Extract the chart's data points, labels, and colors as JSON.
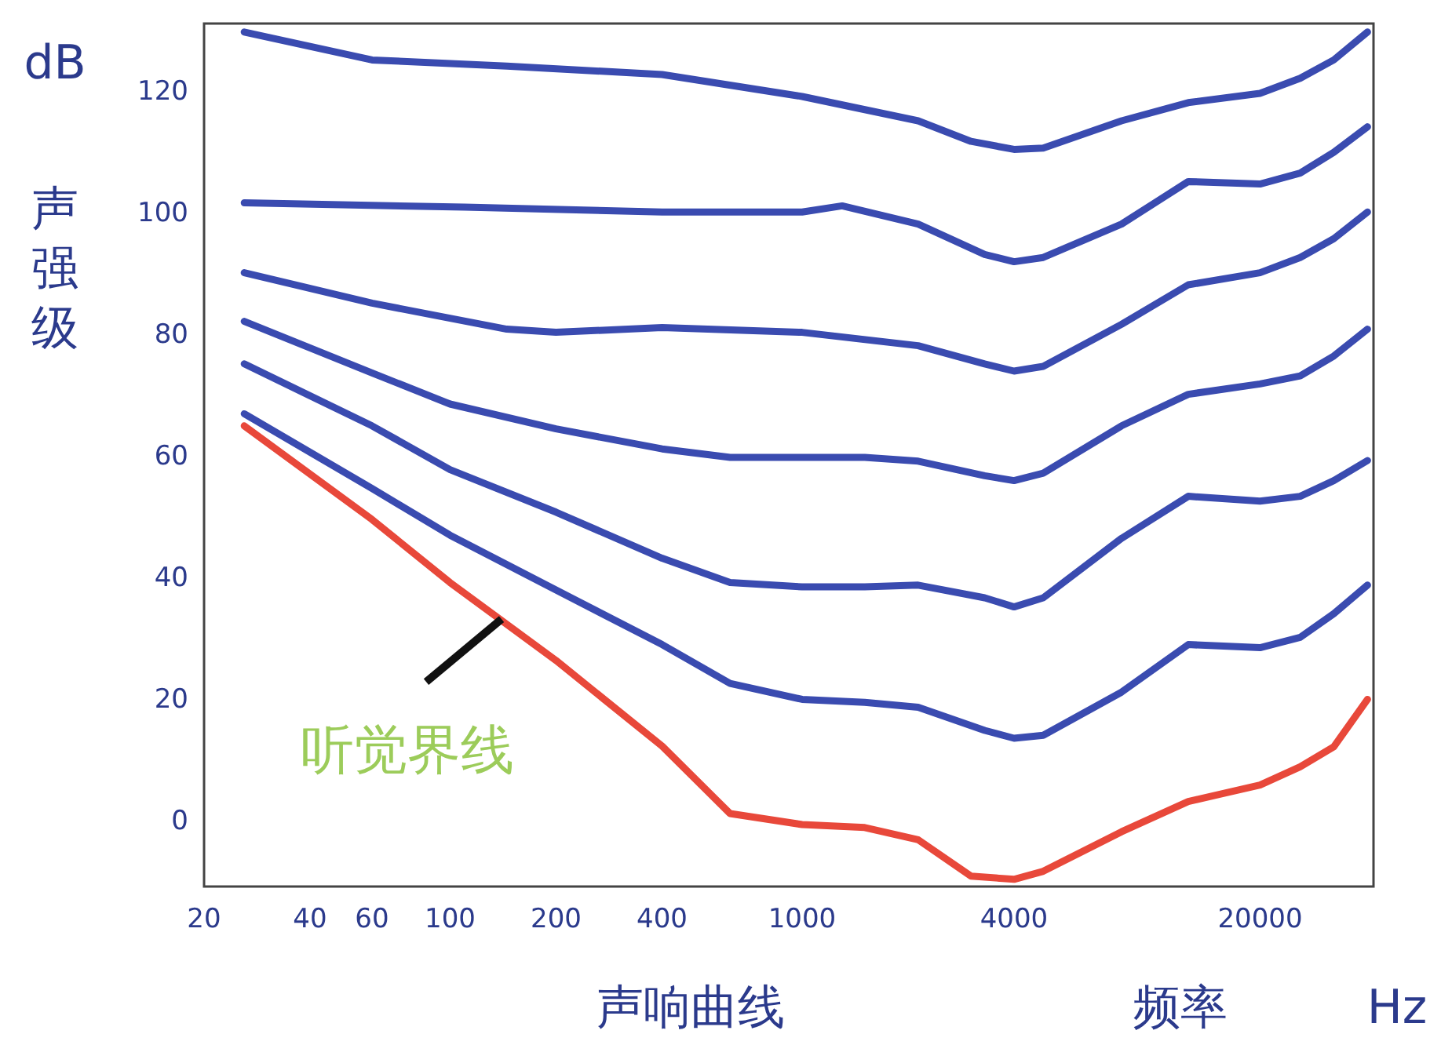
{
  "chart_data": {
    "type": "line",
    "title": "声响曲线",
    "xlabel": "频率",
    "ylabel": "声强级",
    "annotations": [
      "dB",
      "Hz",
      {
        "text": "听觉界线",
        "x": 140,
        "y": 33
      }
    ],
    "log": "x",
    "grid": false,
    "marker": "none",
    "line_style": "solid",
    "xlim": [
      20,
      42000
    ],
    "ylim": [
      -11,
      131
    ],
    "xticks": [
      20,
      40,
      60,
      100,
      200,
      400,
      1000,
      4000,
      20000
    ],
    "yticks": [
      0,
      20,
      40,
      60,
      80,
      100,
      120
    ],
    "series": [
      {
        "color": "#3a4bb0",
        "x": [
          26,
          60,
          145,
          400,
          1000,
          2135,
          3020,
          4000,
          4840,
          8080,
          12500,
          20000,
          26000,
          32400,
          40400
        ],
        "values": [
          129.6,
          125,
          124,
          122.6,
          119,
          115,
          111.6,
          110.3,
          110.5,
          115,
          118,
          119.5,
          122,
          125,
          129.6
        ]
      },
      {
        "color": "#3a4bb0",
        "x": [
          26,
          110,
          400,
          1000,
          1300,
          2135,
          3300,
          4000,
          4840,
          8080,
          12500,
          20000,
          26000,
          32400,
          40400
        ],
        "values": [
          101.5,
          100.8,
          100,
          100,
          101,
          98,
          93,
          91.8,
          92.5,
          98,
          105,
          104.6,
          106.4,
          109.8,
          114
        ]
      },
      {
        "color": "#3a4bb0",
        "x": [
          26,
          60,
          145,
          200,
          400,
          1000,
          2135,
          3300,
          4000,
          4840,
          8080,
          12500,
          20000,
          26000,
          32400,
          40400
        ],
        "values": [
          90,
          85,
          80.7,
          80.2,
          81,
          80.2,
          78,
          75,
          73.8,
          74.6,
          81.5,
          88,
          90,
          92.5,
          95.6,
          100
        ]
      },
      {
        "color": "#3a4bb0",
        "x": [
          26,
          60,
          100,
          200,
          400,
          624,
          1000,
          1506,
          2135,
          3300,
          4000,
          4840,
          8080,
          12500,
          20000,
          26000,
          32400,
          40400
        ],
        "values": [
          82,
          73.5,
          68.4,
          64.3,
          61,
          59.6,
          59.6,
          59.6,
          59,
          56.6,
          55.8,
          57,
          64.8,
          70,
          71.7,
          73,
          76.3,
          80.7
        ]
      },
      {
        "color": "#3a4bb0",
        "x": [
          26,
          60,
          100,
          200,
          400,
          624,
          1000,
          1506,
          2135,
          3300,
          4000,
          4840,
          8080,
          12500,
          20000,
          26000,
          32400,
          40400
        ],
        "values": [
          75,
          64.8,
          57.6,
          50.6,
          43,
          39,
          38.3,
          38.3,
          38.6,
          36.5,
          35,
          36.5,
          46.3,
          53.2,
          52.4,
          53.2,
          55.8,
          59.1
        ]
      },
      {
        "color": "#3a4bb0",
        "x": [
          26,
          60,
          100,
          200,
          400,
          624,
          1000,
          1506,
          2135,
          3300,
          4000,
          4840,
          8080,
          12500,
          20000,
          26000,
          32400,
          40400
        ],
        "values": [
          66.8,
          54.5,
          46.8,
          37.8,
          28.8,
          22.4,
          19.8,
          19.3,
          18.5,
          14.7,
          13.4,
          13.9,
          21,
          28.8,
          28.3,
          30,
          33.9,
          38.6
        ]
      },
      {
        "color": "#e8483a",
        "x": [
          26,
          60,
          100,
          200,
          400,
          624,
          1000,
          1506,
          2135,
          3020,
          4000,
          4840,
          8080,
          12500,
          20000,
          26000,
          32400,
          40400
        ],
        "values": [
          64.8,
          49.4,
          39,
          26.2,
          12.1,
          1,
          -0.8,
          -1.3,
          -3.3,
          -9.3,
          -9.8,
          -8.5,
          -2,
          3,
          5.7,
          8.7,
          12,
          19.8
        ]
      }
    ]
  }
}
